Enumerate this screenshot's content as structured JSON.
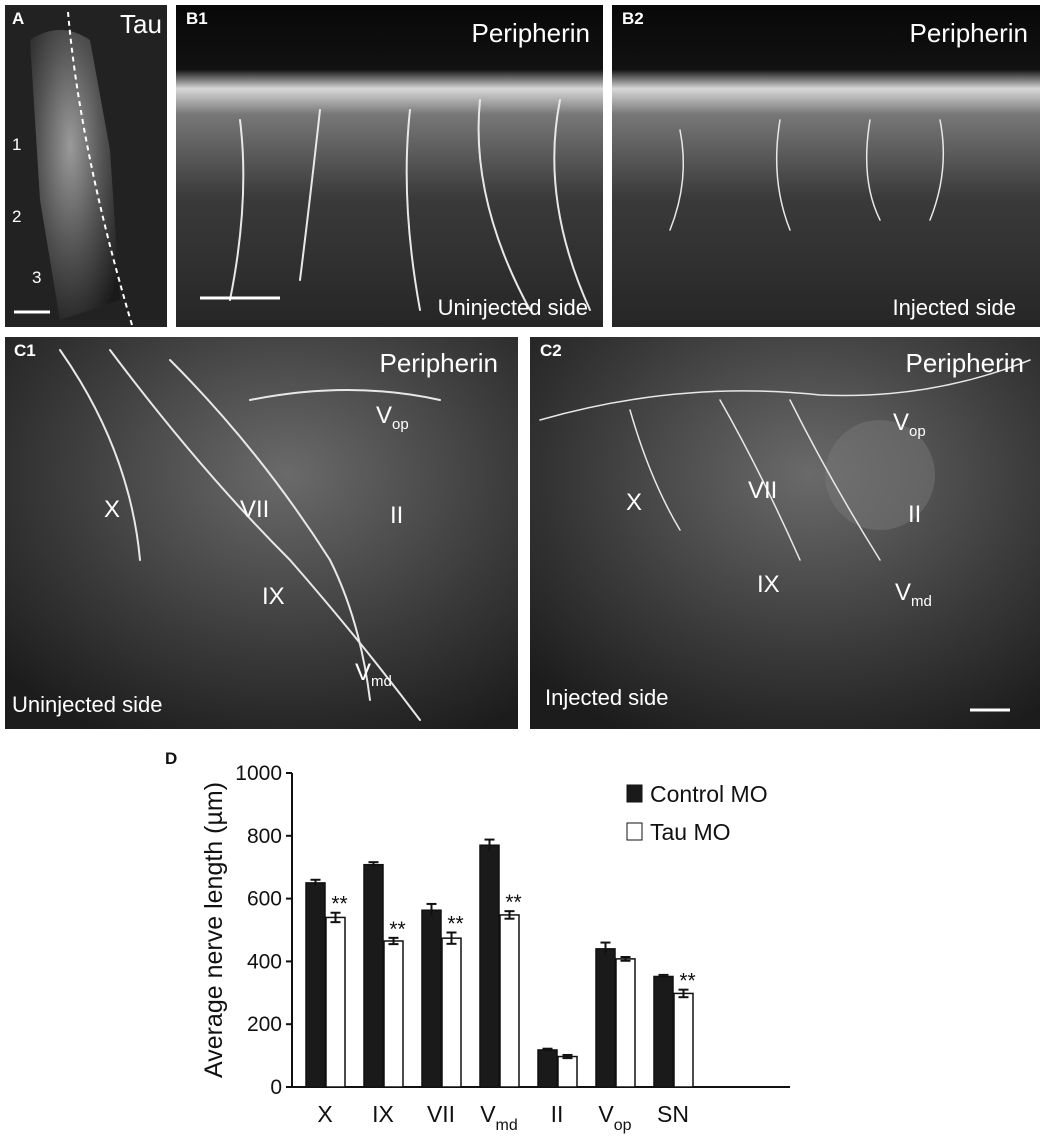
{
  "panels": {
    "A": {
      "id": "A",
      "label": "Tau",
      "markers": [
        "1",
        "2",
        "3"
      ]
    },
    "B1": {
      "id": "B1",
      "label": "Peripherin",
      "side": "Uninjected side"
    },
    "B2": {
      "id": "B2",
      "label": "Peripherin",
      "side": "Injected side"
    },
    "C1": {
      "id": "C1",
      "label": "Peripherin",
      "side": "Uninjected side",
      "nerves": {
        "X": "X",
        "VII": "VII",
        "IX": "IX",
        "II": "II",
        "Vop": "V",
        "Vop_sub": "op",
        "Vmd": "V",
        "Vmd_sub": "md"
      }
    },
    "C2": {
      "id": "C2",
      "label": "Peripherin",
      "side": "Injected side",
      "nerves": {
        "X": "X",
        "VII": "VII",
        "IX": "IX",
        "II": "II",
        "Vop": "V",
        "Vop_sub": "op",
        "Vmd": "V",
        "Vmd_sub": "md"
      }
    },
    "D": {
      "id": "D"
    }
  },
  "chart_data": {
    "type": "bar",
    "title": "",
    "ylabel": "Average nerve length (µm)",
    "xlabel": "",
    "ylim": [
      0,
      1000
    ],
    "yticks": [
      0,
      200,
      400,
      600,
      800,
      1000
    ],
    "categories": [
      "X",
      "IX",
      "VII",
      "Vmd",
      "II",
      "Vop",
      "SN"
    ],
    "category_labels": [
      {
        "text": "X"
      },
      {
        "text": "IX"
      },
      {
        "text": "VII"
      },
      {
        "text": "V",
        "sub": "md"
      },
      {
        "text": "II"
      },
      {
        "text": "V",
        "sub": "op"
      },
      {
        "text": "SN"
      }
    ],
    "series": [
      {
        "name": "Control MO",
        "color": "#1a1a1a",
        "values": [
          650,
          708,
          563,
          770,
          118,
          440,
          352
        ],
        "errors": [
          10,
          8,
          20,
          18,
          4,
          20,
          5
        ]
      },
      {
        "name": "Tau MO",
        "color": "#ffffff",
        "values": [
          540,
          465,
          474,
          548,
          97,
          408,
          298
        ],
        "errors": [
          15,
          10,
          18,
          12,
          5,
          6,
          12
        ]
      }
    ],
    "significance": [
      "**",
      "**",
      "**",
      "**",
      "",
      "",
      "**"
    ],
    "legend_position": "top-right",
    "grid": false
  }
}
